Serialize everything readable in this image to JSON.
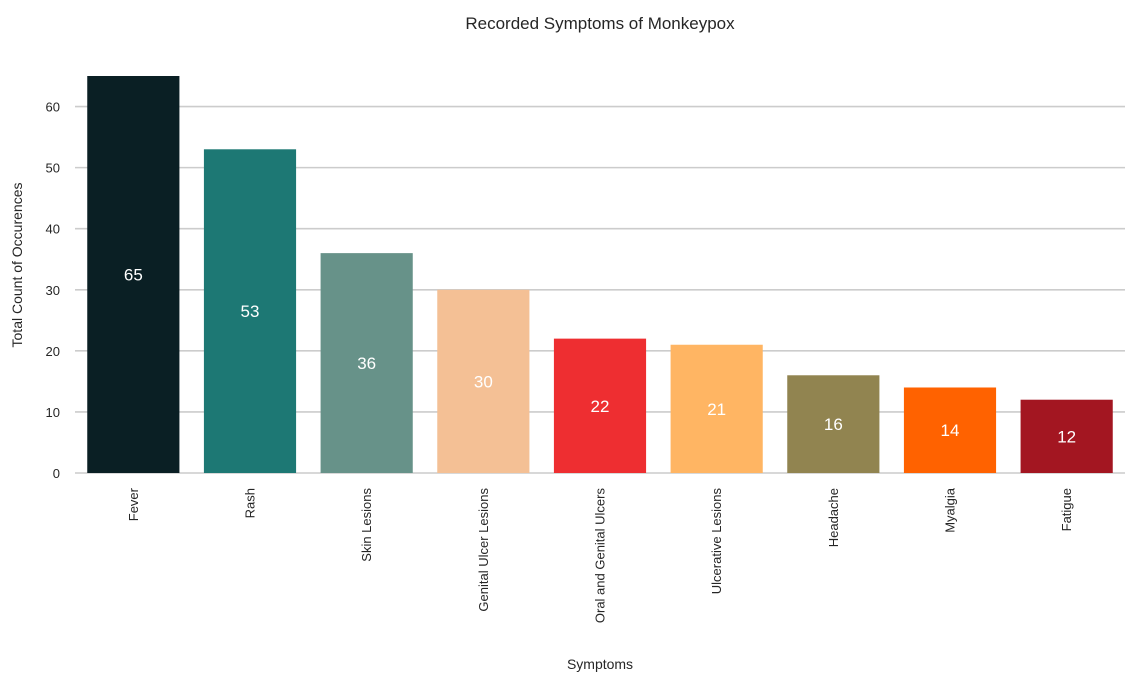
{
  "chart_data": {
    "type": "bar",
    "title": "Recorded Symptoms of Monkeypox",
    "xlabel": "Symptoms",
    "ylabel": "Total Count of Occurences",
    "categories": [
      "Fever",
      "Rash",
      "Skin Lesions",
      "Genital Ulcer Lesions",
      "Oral and Genital Ulcers",
      "Ulcerative Lesions",
      "Headache",
      "Myalgia",
      "Fatigue"
    ],
    "values": [
      65,
      53,
      36,
      30,
      22,
      21,
      16,
      14,
      12
    ],
    "colors": [
      "#0a1f24",
      "#1d7874",
      "#679289",
      "#f4c095",
      "#ee2e31",
      "#ffb563",
      "#918450",
      "#ff6200",
      "#a31621"
    ],
    "ylim": [
      0,
      65
    ],
    "yticks": [
      0,
      10,
      20,
      30,
      40,
      50,
      60
    ],
    "grid": true,
    "legend": "none"
  }
}
